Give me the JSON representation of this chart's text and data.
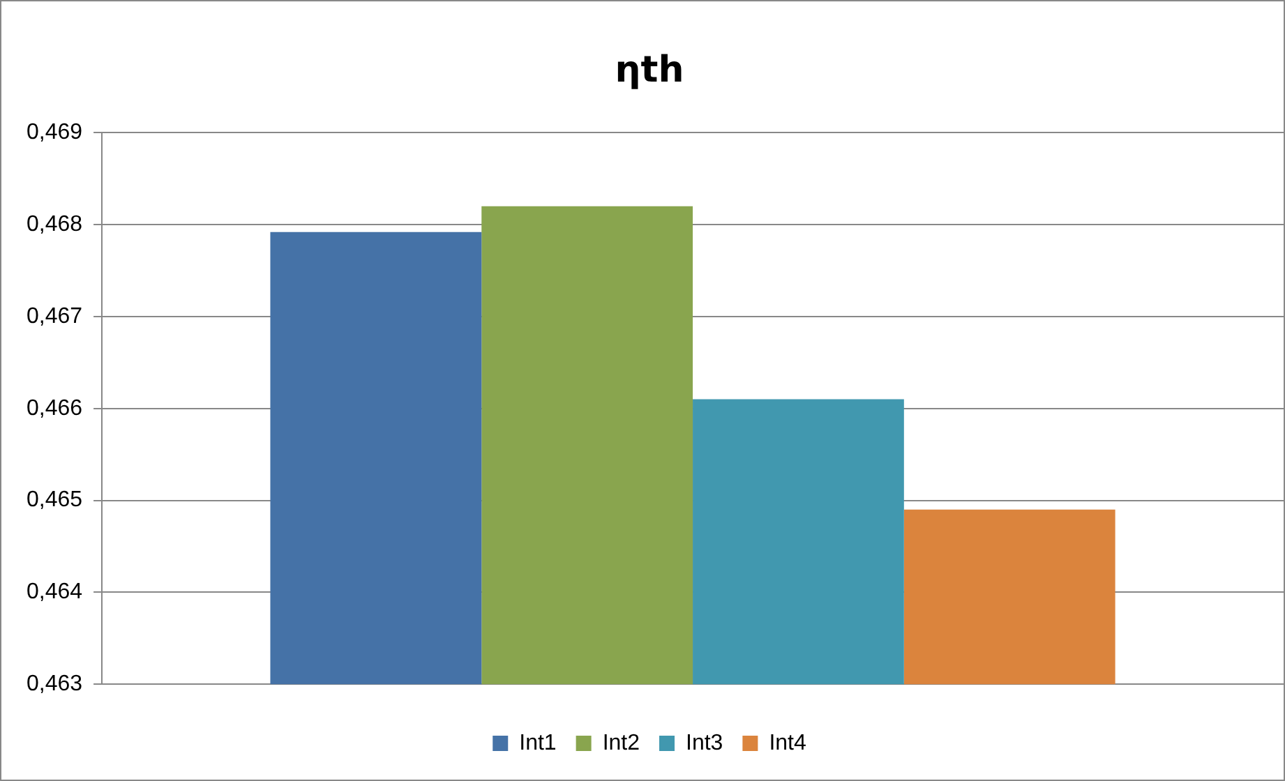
{
  "chart_data": {
    "type": "bar",
    "title": "ηth",
    "categories": [
      null
    ],
    "series": [
      {
        "name": "Int1",
        "color": "#4572a7",
        "values": [
          0.46792
        ]
      },
      {
        "name": "Int2",
        "color": "#89a54e",
        "values": [
          0.4682
        ]
      },
      {
        "name": "Int3",
        "color": "#4198af",
        "values": [
          0.4661
        ]
      },
      {
        "name": "Int4",
        "color": "#db843d",
        "values": [
          0.4649
        ]
      }
    ],
    "ylim": [
      0.463,
      0.469
    ],
    "yticks": [
      {
        "value": 0.463,
        "label": "0,463"
      },
      {
        "value": 0.464,
        "label": "0,464"
      },
      {
        "value": 0.465,
        "label": "0,465"
      },
      {
        "value": 0.466,
        "label": "0,466"
      },
      {
        "value": 0.467,
        "label": "0,467"
      },
      {
        "value": 0.468,
        "label": "0,468"
      },
      {
        "value": 0.469,
        "label": "0,469"
      }
    ],
    "grid": "y",
    "legend": "bottom"
  }
}
